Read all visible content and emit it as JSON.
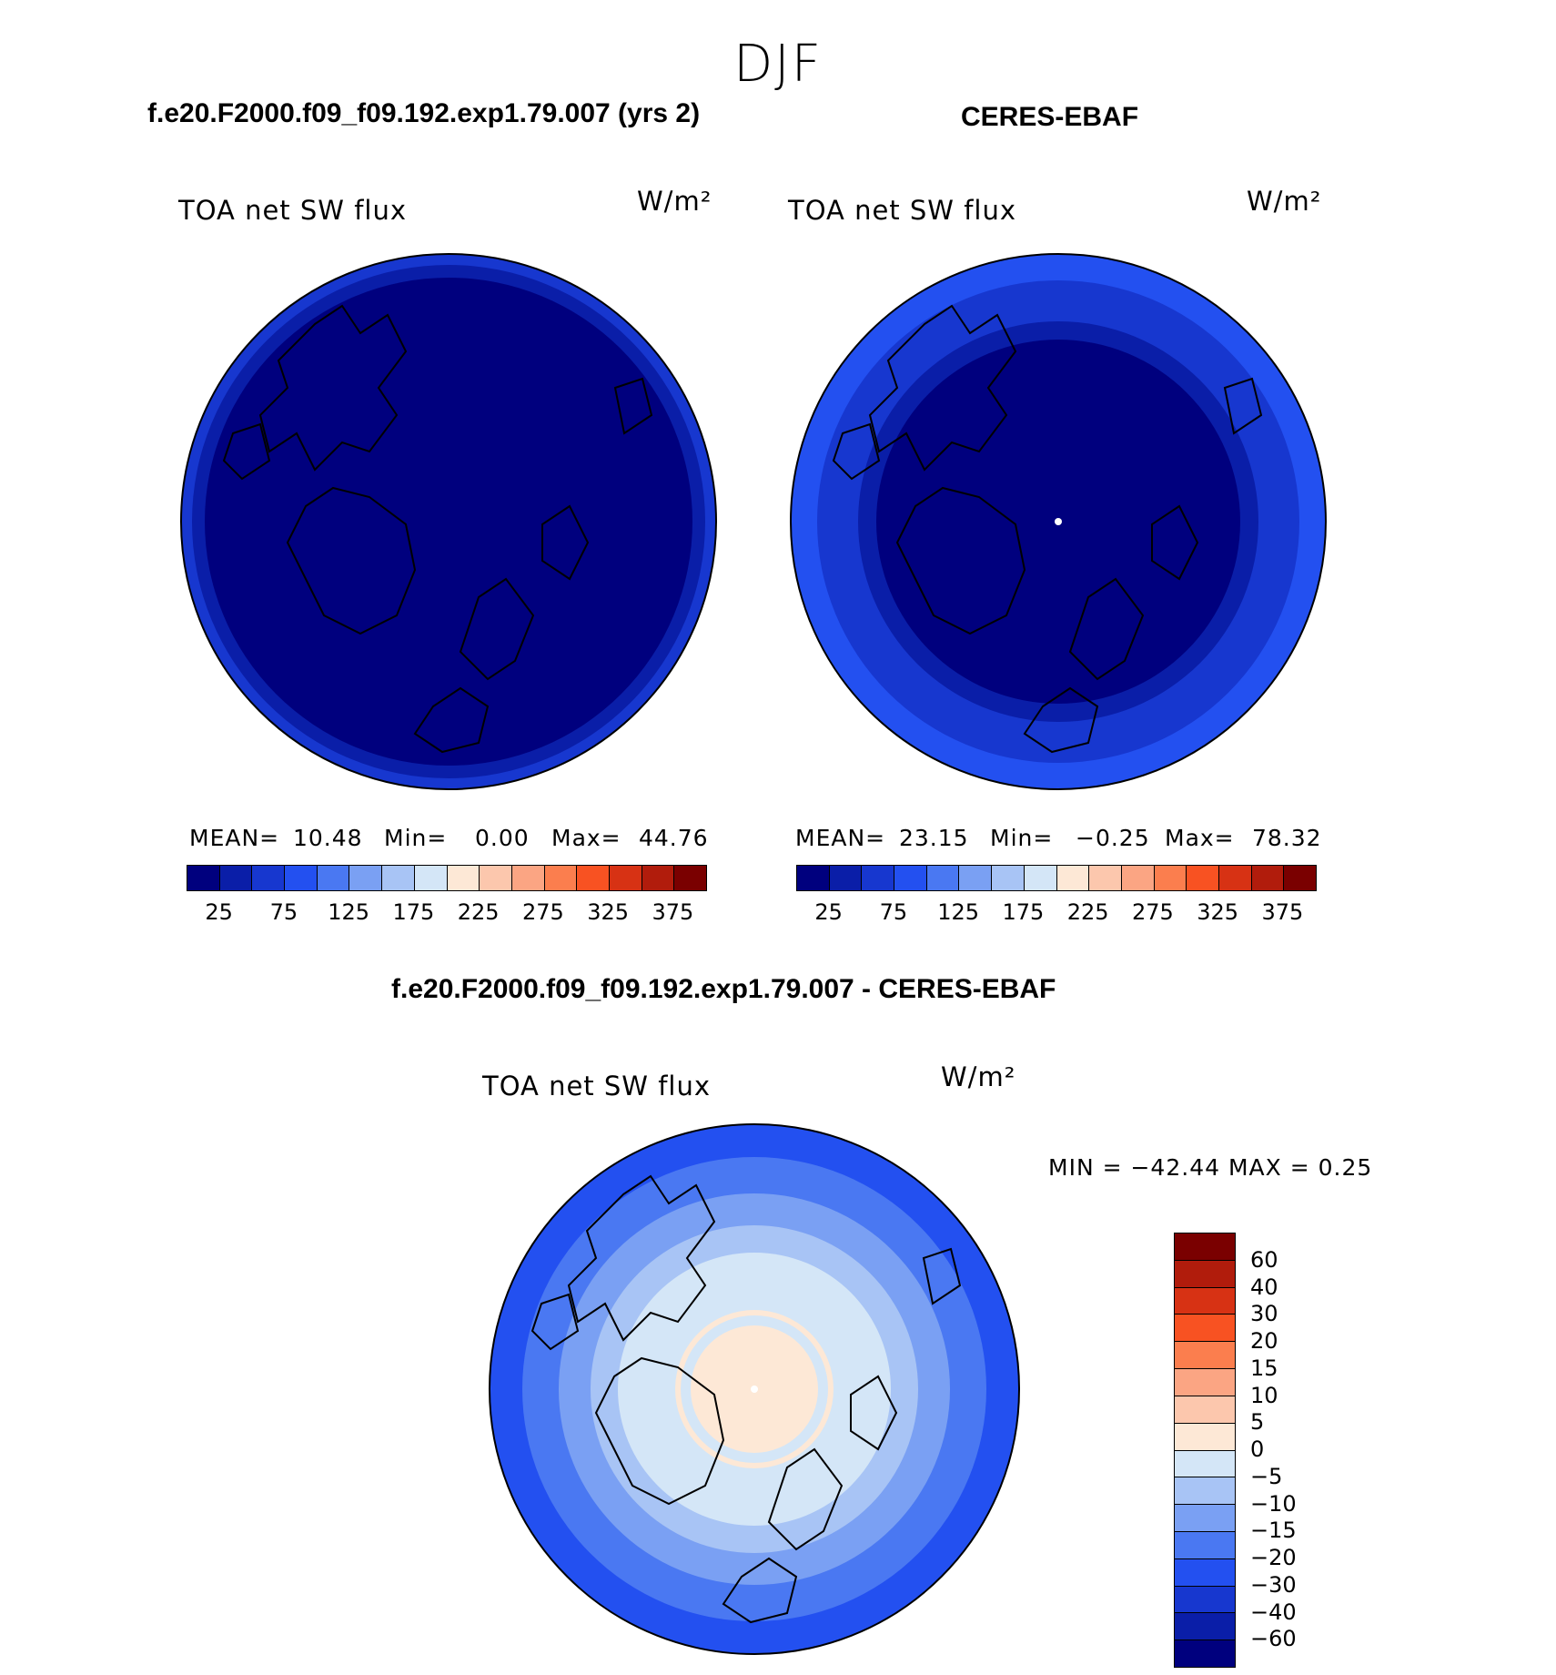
{
  "season": "DJF",
  "panels": [
    {
      "title": "f.e20.F2000.f09_f09.192.exp1.79.007 (yrs 2)",
      "field": "TOA net SW flux",
      "unit": "W/m²",
      "mean_label": "MEAN=",
      "mean": "10.48",
      "min_label": "Min=",
      "min": "0.00",
      "max_label": "Max=",
      "max": "44.76"
    },
    {
      "title": "CERES-EBAF",
      "field": "TOA net SW flux",
      "unit": "W/m²",
      "mean_label": "MEAN=",
      "mean": "23.15",
      "min_label": "Min=",
      "min": "−0.25",
      "max_label": "Max=",
      "max": "78.32"
    }
  ],
  "diff": {
    "title": "f.e20.F2000.f09_f09.192.exp1.79.007 - CERES-EBAF",
    "field": "TOA net SW flux",
    "unit": "W/m²",
    "minmax": "MIN = −42.44 MAX =    0.25"
  },
  "colorbar_abs": {
    "colors": [
      "#00007e",
      "#0a1ea8",
      "#1737cf",
      "#2350f0",
      "#4a78f2",
      "#7aa0f3",
      "#a8c4f5",
      "#d4e6f7",
      "#fde8d6",
      "#fcc7ad",
      "#fba583",
      "#fb7e4e",
      "#f85222",
      "#d73214",
      "#b11c0c",
      "#7a0000"
    ],
    "ticks": [
      "25",
      "75",
      "125",
      "175",
      "225",
      "275",
      "325",
      "375"
    ]
  },
  "colorbar_diff": {
    "colors": [
      "#7a0000",
      "#b11c0c",
      "#d73214",
      "#f85222",
      "#fb7e4e",
      "#fba583",
      "#fcc7ad",
      "#fde8d6",
      "#d4e6f7",
      "#a8c4f5",
      "#7aa0f3",
      "#4a78f2",
      "#2350f0",
      "#1737cf",
      "#0a1ea8",
      "#00007e"
    ],
    "ticks": [
      "60",
      "40",
      "30",
      "20",
      "15",
      "10",
      "5",
      "0",
      "−5",
      "−10",
      "−15",
      "−20",
      "−30",
      "−40",
      "−60"
    ]
  },
  "colors": {
    "deep_blue": "#00007e",
    "mid_blue": "#0a1ea8",
    "blue": "#1737cf",
    "light_blue": "#4a78f2",
    "pale_blue": "#7aa0f3",
    "ice_blue": "#a8c4f5",
    "faint_blue": "#d4e6f7",
    "peach": "#fde8d6"
  }
}
